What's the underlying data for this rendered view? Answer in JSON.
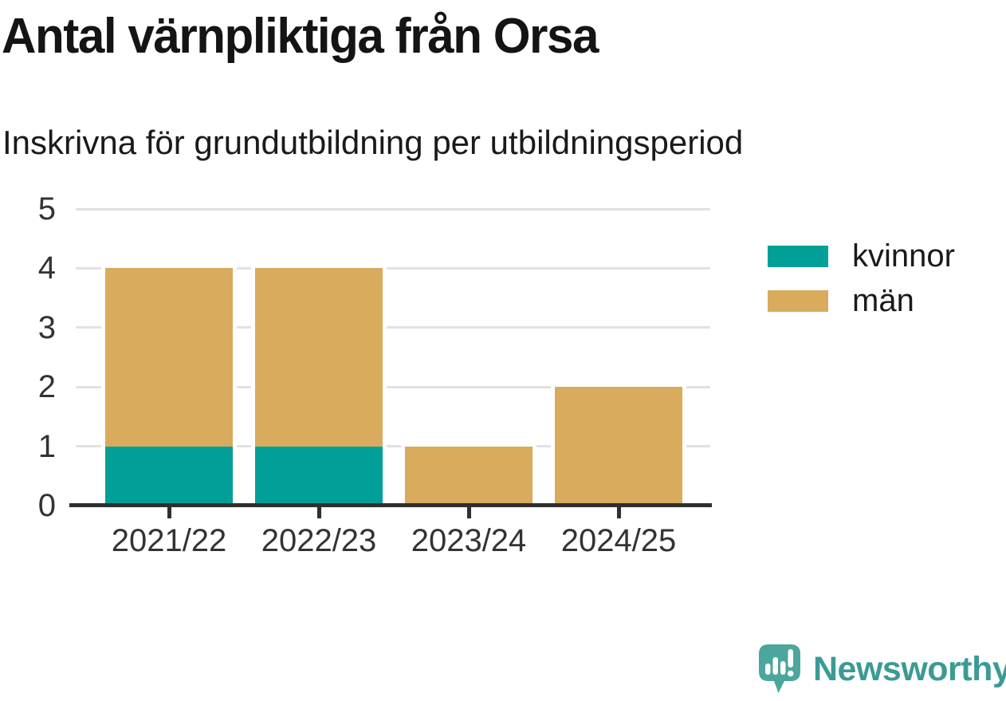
{
  "chart_data": {
    "type": "bar",
    "stacked": true,
    "title": "Antal värnpliktiga från Orsa",
    "subtitle": "Inskrivna för grundutbildning per utbildningsperiod",
    "categories": [
      "2021/22",
      "2022/23",
      "2023/24",
      "2024/25"
    ],
    "series": [
      {
        "name": "kvinnor",
        "color": "#00A099",
        "values": [
          1,
          1,
          0,
          0
        ]
      },
      {
        "name": "män",
        "color": "#D8AB5D",
        "values": [
          3,
          3,
          1,
          2
        ]
      }
    ],
    "totals": [
      4,
      4,
      1,
      2
    ],
    "xlabel": "",
    "ylabel": "",
    "ylim": [
      0,
      5
    ],
    "yticks": [
      0,
      1,
      2,
      3,
      4,
      5
    ],
    "grid": true,
    "legend_position": "right"
  },
  "style": {
    "grid_color": "#E1E1E1",
    "axis_color": "#2F2F2F",
    "tick_label_color": "#333333",
    "bar_outline_color": "#FFFFFF"
  },
  "branding": {
    "text": "Newsworthy",
    "text_color": "#3B9B94",
    "icon": "newsworthy-bubble-chart-icon",
    "icon_color": "#4CA69E"
  }
}
